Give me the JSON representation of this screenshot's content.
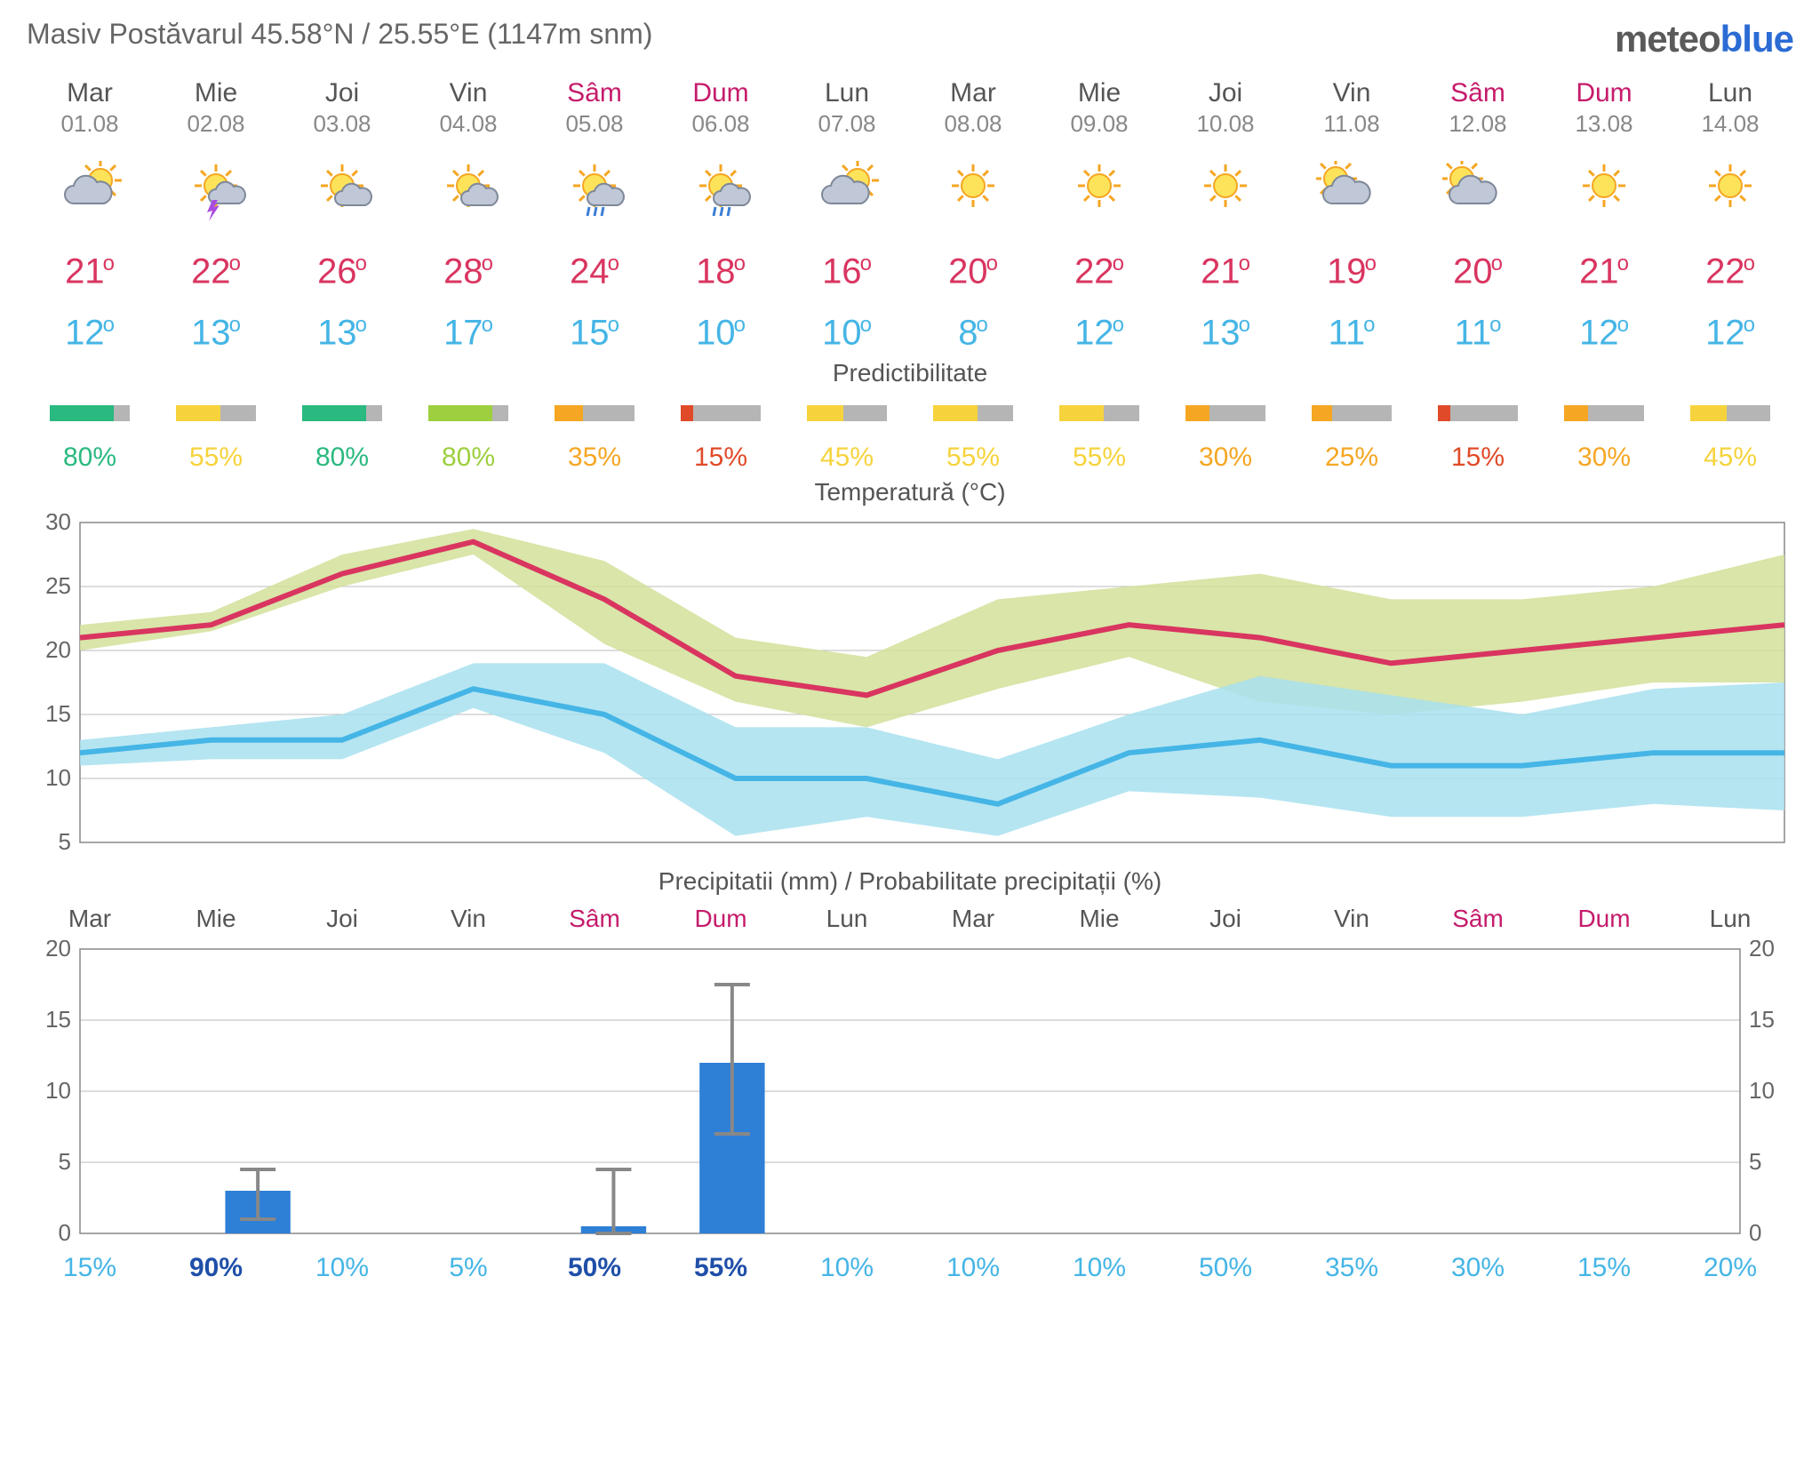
{
  "header": {
    "location": "Masiv Postăvarul  45.58°N / 25.55°E (1147m snm)",
    "brand_meteo": "meteo",
    "brand_blue": "blue",
    "brand_color1": "#5a5a5a",
    "brand_color2": "#2b6bd4"
  },
  "colors": {
    "weekday": "#555555",
    "weekend": "#c51b6b",
    "date": "#888888",
    "hi": "#d93560",
    "lo": "#45b5e6",
    "bar_bg": "#b5b5b5",
    "green": "#2ab97f",
    "lime": "#9dcf3e",
    "orange": "#f5a623",
    "red": "#e04a28",
    "yellow": "#f6d33c",
    "precip_bar": "#2e7fd6",
    "precip_err": "#888",
    "temp_hi_line": "#d93560",
    "temp_lo_line": "#45b5e6",
    "hi_band": "#d2e09a",
    "lo_band": "#a8e0ee",
    "grid": "#bbbbbb"
  },
  "titles": {
    "predict": "Predictibilitate",
    "temp": "Temperatură (°C)",
    "precip": "Precipitatii (mm) / Probabilitate precipitații (%)"
  },
  "days": [
    {
      "name": "Mar",
      "date": "01.08",
      "wknd": false,
      "icon": "partcloud",
      "hi": 21,
      "lo": 12,
      "pred": 80,
      "pcolor": "green",
      "prob": 15,
      "probBold": false,
      "pp": 0,
      "ppLo": 0,
      "ppHi": 0
    },
    {
      "name": "Mie",
      "date": "02.08",
      "wknd": false,
      "icon": "storm",
      "hi": 22,
      "lo": 13,
      "pred": 55,
      "pcolor": "yellow",
      "prob": 90,
      "probBold": true,
      "pp": 3,
      "ppLo": 1,
      "ppHi": 4.5
    },
    {
      "name": "Joi",
      "date": "03.08",
      "wknd": false,
      "icon": "suncloud",
      "hi": 26,
      "lo": 13,
      "pred": 80,
      "pcolor": "green",
      "prob": 10,
      "probBold": false,
      "pp": 0,
      "ppLo": 0,
      "ppHi": 0
    },
    {
      "name": "Vin",
      "date": "04.08",
      "wknd": false,
      "icon": "suncloud",
      "hi": 28,
      "lo": 17,
      "pred": 80,
      "pcolor": "lime",
      "prob": 5,
      "probBold": false,
      "pp": 0,
      "ppLo": 0,
      "ppHi": 0
    },
    {
      "name": "Sâm",
      "date": "05.08",
      "wknd": true,
      "icon": "rain",
      "hi": 24,
      "lo": 15,
      "pred": 35,
      "pcolor": "orange",
      "prob": 50,
      "probBold": true,
      "pp": 0.5,
      "ppLo": 0,
      "ppHi": 4.5
    },
    {
      "name": "Dum",
      "date": "06.08",
      "wknd": true,
      "icon": "rain",
      "hi": 18,
      "lo": 10,
      "pred": 15,
      "pcolor": "red",
      "prob": 55,
      "probBold": true,
      "pp": 12,
      "ppLo": 7,
      "ppHi": 17.5
    },
    {
      "name": "Lun",
      "date": "07.08",
      "wknd": false,
      "icon": "partcloud",
      "hi": 16,
      "lo": 10,
      "pred": 45,
      "pcolor": "yellow",
      "prob": 10,
      "probBold": false,
      "pp": 0,
      "ppLo": 0,
      "ppHi": 0
    },
    {
      "name": "Mar",
      "date": "08.08",
      "wknd": false,
      "icon": "sun",
      "hi": 20,
      "lo": 8,
      "pred": 55,
      "pcolor": "yellow",
      "prob": 10,
      "probBold": false,
      "pp": 0,
      "ppLo": 0,
      "ppHi": 0
    },
    {
      "name": "Mie",
      "date": "09.08",
      "wknd": false,
      "icon": "sun",
      "hi": 22,
      "lo": 12,
      "pred": 55,
      "pcolor": "yellow",
      "prob": 10,
      "probBold": false,
      "pp": 0,
      "ppLo": 0,
      "ppHi": 0
    },
    {
      "name": "Joi",
      "date": "10.08",
      "wknd": false,
      "icon": "sun",
      "hi": 21,
      "lo": 13,
      "pred": 30,
      "pcolor": "orange",
      "prob": 50,
      "probBold": false,
      "pp": 0,
      "ppLo": 0,
      "ppHi": 0
    },
    {
      "name": "Vin",
      "date": "11.08",
      "wknd": false,
      "icon": "cloud",
      "hi": 19,
      "lo": 11,
      "pred": 25,
      "pcolor": "orange",
      "prob": 35,
      "probBold": false,
      "pp": 0,
      "ppLo": 0,
      "ppHi": 0
    },
    {
      "name": "Sâm",
      "date": "12.08",
      "wknd": true,
      "icon": "cloud",
      "hi": 20,
      "lo": 11,
      "pred": 15,
      "pcolor": "red",
      "prob": 30,
      "probBold": false,
      "pp": 0,
      "ppLo": 0,
      "ppHi": 0
    },
    {
      "name": "Dum",
      "date": "13.08",
      "wknd": true,
      "icon": "sun",
      "hi": 21,
      "lo": 12,
      "pred": 30,
      "pcolor": "orange",
      "prob": 15,
      "probBold": false,
      "pp": 0,
      "ppLo": 0,
      "ppHi": 0
    },
    {
      "name": "Lun",
      "date": "14.08",
      "wknd": false,
      "icon": "sun",
      "hi": 22,
      "lo": 12,
      "pred": 45,
      "pcolor": "yellow",
      "prob": 20,
      "probBold": false,
      "pp": 0,
      "ppLo": 0,
      "ppHi": 0
    }
  ],
  "temp_chart": {
    "ymin": 5,
    "ymax": 30,
    "ystep": 5,
    "hi": [
      21,
      22,
      26,
      28.5,
      24,
      18,
      16.5,
      20,
      22,
      21,
      19,
      20,
      21,
      22
    ],
    "hi_up": [
      22,
      23,
      27.5,
      29.5,
      27,
      21,
      19.5,
      24,
      25,
      26,
      24,
      24,
      25,
      27.5
    ],
    "hi_dn": [
      20,
      21.5,
      25,
      27.5,
      20.5,
      16,
      14,
      17,
      19.5,
      16,
      15,
      16,
      17.5,
      17.5
    ],
    "lo": [
      12,
      13,
      13,
      17,
      15,
      10,
      10,
      8,
      12,
      13,
      11,
      11,
      12,
      12
    ],
    "lo_up": [
      13,
      14,
      15,
      19,
      19,
      14,
      14,
      11.5,
      15,
      18,
      16.5,
      15,
      17,
      17.5
    ],
    "lo_dn": [
      11,
      11.5,
      11.5,
      15.5,
      12,
      5.5,
      7,
      5.5,
      9,
      8.5,
      7,
      7,
      8,
      7.5
    ]
  },
  "precip_chart": {
    "ymin": 0,
    "ymax": 20,
    "ystep": 5
  }
}
